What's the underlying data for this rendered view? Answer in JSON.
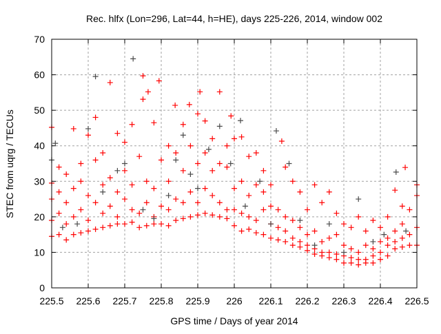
{
  "chart_data": {
    "type": "scatter",
    "title": "Rec. hlfx (Lon=296, Lat=44, h=HE), days 225-226, 2014, window 002",
    "xlabel": "GPS time / Days of year 2014",
    "ylabel": "STEC from uqrg / TECUs",
    "xlim": [
      225.5,
      226.5
    ],
    "ylim": [
      0,
      70
    ],
    "grid": true,
    "xticks": [
      "225.5",
      "225.6",
      "225.7",
      "225.8",
      "225.9",
      "226",
      "226.1",
      "226.2",
      "226.3",
      "226.4",
      "226.5"
    ],
    "yticks": [
      "0",
      "10",
      "20",
      "30",
      "40",
      "50",
      "60",
      "70"
    ],
    "series": [
      {
        "name": "red",
        "color": "#ff0000",
        "points": [
          [
            225.5,
            14.5
          ],
          [
            225.5,
            19
          ],
          [
            225.5,
            25
          ],
          [
            225.5,
            29.5
          ],
          [
            225.5,
            45.2
          ],
          [
            225.52,
            15
          ],
          [
            225.52,
            21
          ],
          [
            225.52,
            27
          ],
          [
            225.52,
            34
          ],
          [
            225.54,
            13.5
          ],
          [
            225.54,
            18
          ],
          [
            225.54,
            24
          ],
          [
            225.54,
            32
          ],
          [
            225.56,
            15
          ],
          [
            225.56,
            20
          ],
          [
            225.56,
            28
          ],
          [
            225.56,
            44.8
          ],
          [
            225.58,
            15.5
          ],
          [
            225.58,
            22
          ],
          [
            225.58,
            30
          ],
          [
            225.58,
            35
          ],
          [
            225.6,
            16
          ],
          [
            225.6,
            19
          ],
          [
            225.6,
            26
          ],
          [
            225.6,
            43
          ],
          [
            225.62,
            16.5
          ],
          [
            225.62,
            24
          ],
          [
            225.62,
            36
          ],
          [
            225.62,
            48
          ],
          [
            225.64,
            17
          ],
          [
            225.64,
            21
          ],
          [
            225.64,
            29
          ],
          [
            225.64,
            38
          ],
          [
            225.66,
            17.5
          ],
          [
            225.66,
            23
          ],
          [
            225.66,
            31
          ],
          [
            225.66,
            57.8
          ],
          [
            225.68,
            18
          ],
          [
            225.68,
            20
          ],
          [
            225.68,
            27
          ],
          [
            225.68,
            43.5
          ],
          [
            225.7,
            18
          ],
          [
            225.7,
            25
          ],
          [
            225.7,
            33
          ],
          [
            225.7,
            41
          ],
          [
            225.72,
            18.5
          ],
          [
            225.72,
            22
          ],
          [
            225.72,
            29
          ],
          [
            225.72,
            46
          ],
          [
            225.74,
            17
          ],
          [
            225.74,
            21
          ],
          [
            225.74,
            37
          ],
          [
            225.75,
            53.1
          ],
          [
            225.76,
            17.5
          ],
          [
            225.76,
            24
          ],
          [
            225.76,
            30
          ],
          [
            225.75,
            59.7
          ],
          [
            225.764,
            55.2
          ],
          [
            225.78,
            18
          ],
          [
            225.78,
            20
          ],
          [
            225.78,
            28
          ],
          [
            225.78,
            46.5
          ],
          [
            225.8,
            18
          ],
          [
            225.8,
            23
          ],
          [
            225.8,
            36
          ],
          [
            225.794,
            58.3
          ],
          [
            225.82,
            17.5
          ],
          [
            225.82,
            22
          ],
          [
            225.82,
            30
          ],
          [
            225.82,
            40
          ],
          [
            225.84,
            19
          ],
          [
            225.84,
            25
          ],
          [
            225.84,
            38
          ],
          [
            225.838,
            51.4
          ],
          [
            225.86,
            19.5
          ],
          [
            225.86,
            24
          ],
          [
            225.86,
            33
          ],
          [
            225.86,
            46
          ],
          [
            225.88,
            20
          ],
          [
            225.88,
            27
          ],
          [
            225.88,
            40
          ],
          [
            225.877,
            51.6
          ],
          [
            225.9,
            20.5
          ],
          [
            225.9,
            24
          ],
          [
            225.9,
            35
          ],
          [
            225.9,
            49
          ],
          [
            225.906,
            55.2
          ],
          [
            225.92,
            21
          ],
          [
            225.92,
            28
          ],
          [
            225.92,
            38
          ],
          [
            225.92,
            47
          ],
          [
            225.94,
            20.5
          ],
          [
            225.94,
            26
          ],
          [
            225.94,
            33
          ],
          [
            225.94,
            42
          ],
          [
            225.96,
            20
          ],
          [
            225.96,
            24
          ],
          [
            225.96,
            35
          ],
          [
            225.96,
            55.2
          ],
          [
            225.98,
            19.5
          ],
          [
            225.98,
            22
          ],
          [
            225.98,
            34
          ],
          [
            225.98,
            40
          ],
          [
            225.991,
            48.4
          ],
          [
            226.0,
            17.5
          ],
          [
            226.0,
            22
          ],
          [
            226.0,
            28
          ],
          [
            226.0,
            42
          ],
          [
            226.02,
            16
          ],
          [
            226.02,
            21
          ],
          [
            226.02,
            30
          ],
          [
            226.02,
            42.5
          ],
          [
            226.04,
            16.5
          ],
          [
            226.04,
            20
          ],
          [
            226.04,
            26
          ],
          [
            226.04,
            37
          ],
          [
            226.06,
            15.5
          ],
          [
            226.06,
            19
          ],
          [
            226.06,
            29
          ],
          [
            226.06,
            38
          ],
          [
            226.08,
            15
          ],
          [
            226.08,
            22
          ],
          [
            226.08,
            27
          ],
          [
            226.08,
            33
          ],
          [
            226.1,
            14
          ],
          [
            226.1,
            18
          ],
          [
            226.1,
            23
          ],
          [
            226.1,
            29
          ],
          [
            226.12,
            13.5
          ],
          [
            226.12,
            17
          ],
          [
            226.12,
            22
          ],
          [
            226.13,
            41.3
          ],
          [
            226.14,
            13
          ],
          [
            226.14,
            16
          ],
          [
            226.14,
            20
          ],
          [
            226.14,
            34
          ],
          [
            226.16,
            12
          ],
          [
            226.16,
            14
          ],
          [
            226.16,
            19
          ],
          [
            226.16,
            30
          ],
          [
            226.18,
            11.5
          ],
          [
            226.18,
            13
          ],
          [
            226.18,
            17
          ],
          [
            226.18,
            27
          ],
          [
            226.2,
            10.5
          ],
          [
            226.2,
            12
          ],
          [
            226.2,
            15
          ],
          [
            226.2,
            22
          ],
          [
            226.22,
            9.5
          ],
          [
            226.22,
            11
          ],
          [
            226.22,
            16
          ],
          [
            226.22,
            29
          ],
          [
            226.24,
            9
          ],
          [
            226.24,
            10
          ],
          [
            226.24,
            13
          ],
          [
            226.24,
            24
          ],
          [
            226.26,
            8.5
          ],
          [
            226.26,
            10
          ],
          [
            226.26,
            14
          ],
          [
            226.26,
            27
          ],
          [
            226.28,
            8
          ],
          [
            226.28,
            9.5
          ],
          [
            226.28,
            15
          ],
          [
            226.28,
            21
          ],
          [
            226.3,
            7
          ],
          [
            226.3,
            9
          ],
          [
            226.3,
            12
          ],
          [
            226.3,
            18
          ],
          [
            226.32,
            7
          ],
          [
            226.32,
            8.5
          ],
          [
            226.32,
            11
          ],
          [
            226.32,
            17
          ],
          [
            226.34,
            6.5
          ],
          [
            226.34,
            8
          ],
          [
            226.34,
            10
          ],
          [
            226.34,
            20
          ],
          [
            226.36,
            7
          ],
          [
            226.36,
            8
          ],
          [
            226.36,
            12
          ],
          [
            226.36,
            16
          ],
          [
            226.38,
            7
          ],
          [
            226.38,
            9
          ],
          [
            226.38,
            11
          ],
          [
            226.38,
            19
          ],
          [
            226.4,
            8
          ],
          [
            226.4,
            10
          ],
          [
            226.4,
            13
          ],
          [
            226.4,
            17
          ],
          [
            226.42,
            9
          ],
          [
            226.42,
            12
          ],
          [
            226.42,
            14
          ],
          [
            226.42,
            20
          ],
          [
            226.44,
            11
          ],
          [
            226.44,
            13
          ],
          [
            226.44,
            16
          ],
          [
            226.44,
            27.5
          ],
          [
            226.46,
            11.5
          ],
          [
            226.46,
            14
          ],
          [
            226.46,
            18
          ],
          [
            226.46,
            23
          ],
          [
            226.48,
            12
          ],
          [
            226.48,
            15
          ],
          [
            226.48,
            22
          ],
          [
            226.468,
            33.9
          ],
          [
            226.5,
            12
          ],
          [
            226.5,
            17
          ],
          [
            226.5,
            26
          ],
          [
            226.5,
            29
          ]
        ]
      },
      {
        "name": "gray",
        "color": "#4a4a4a",
        "points": [
          [
            225.5,
            36
          ],
          [
            225.51,
            40.7
          ],
          [
            225.53,
            17
          ],
          [
            225.57,
            18
          ],
          [
            225.6,
            44.8
          ],
          [
            225.62,
            59.5
          ],
          [
            225.64,
            27
          ],
          [
            225.68,
            33
          ],
          [
            225.7,
            35
          ],
          [
            225.723,
            64.5
          ],
          [
            225.75,
            22
          ],
          [
            225.78,
            19.5
          ],
          [
            225.82,
            26
          ],
          [
            225.84,
            36
          ],
          [
            225.86,
            43
          ],
          [
            225.88,
            32
          ],
          [
            225.9,
            28
          ],
          [
            225.93,
            39
          ],
          [
            225.96,
            45.5
          ],
          [
            225.99,
            35
          ],
          [
            226.017,
            47.1
          ],
          [
            226.03,
            23
          ],
          [
            226.07,
            30
          ],
          [
            226.1,
            18
          ],
          [
            226.115,
            44.2
          ],
          [
            226.15,
            35
          ],
          [
            226.18,
            19
          ],
          [
            226.22,
            12
          ],
          [
            226.26,
            18
          ],
          [
            226.3,
            10
          ],
          [
            226.34,
            25
          ],
          [
            226.38,
            13
          ],
          [
            226.41,
            15
          ],
          [
            226.443,
            32.6
          ],
          [
            226.47,
            16
          ]
        ]
      }
    ]
  }
}
